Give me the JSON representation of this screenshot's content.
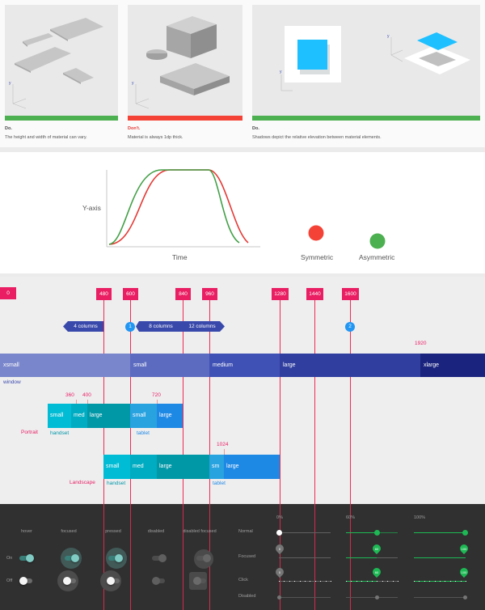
{
  "cards": [
    {
      "label": "Do.",
      "desc": "The height and width of material can vary.",
      "status_color": "#4caf50"
    },
    {
      "label": "Don't.",
      "desc": "Material is always 1dp thick.",
      "status_color": "#f44336"
    },
    {
      "label": "Do.",
      "desc": "Shadows depict the relative elevation between material elements.",
      "status_color": "#4caf50"
    }
  ],
  "axis_glyph": {
    "y": "y",
    "x": "x"
  },
  "easing": {
    "y_axis_label": "Y-axis",
    "x_axis_label": "Time",
    "legend": [
      {
        "label": "Symmetric",
        "color": "#f44336"
      },
      {
        "label": "Asymmetric",
        "color": "#4caf50"
      }
    ]
  },
  "breakpoints": {
    "values": [
      "0",
      "480",
      "600",
      "840",
      "960",
      "1280",
      "1440",
      "1600"
    ],
    "columns": {
      "four": "4 columns",
      "eight": "8 columns",
      "twelve": "12 columns"
    },
    "margins": {
      "first": "1",
      "second": "2"
    },
    "window_label": "window",
    "window_sizes": [
      "xsmall",
      "small",
      "medium",
      "large",
      "xlarge"
    ],
    "window_1920": "1920",
    "portrait": {
      "label": "Portrait",
      "marks": [
        "360",
        "400",
        "720"
      ],
      "handset": [
        "small",
        "med",
        "large"
      ],
      "tablet": [
        "small",
        "large"
      ],
      "handset_label": "handset",
      "tablet_label": "tablet"
    },
    "landscape": {
      "label": "Landscape",
      "mark": "1024",
      "handset": [
        "small",
        "med",
        "large"
      ],
      "tablet": [
        "sm",
        "large"
      ],
      "handset_label": "handset",
      "tablet_label": "tablet"
    }
  },
  "switches": {
    "states": [
      "hover",
      "focused",
      "pressed",
      "disabled",
      "disabled focused"
    ],
    "rows": [
      "On",
      "Off"
    ],
    "accent": "#4db6ac"
  },
  "sliders": {
    "columns": [
      "0%",
      "60%",
      "100%"
    ],
    "rows": [
      "Normal",
      "Focused",
      "Click",
      "Disabled"
    ],
    "pin_values": [
      "0",
      "60",
      "100"
    ],
    "accent": "#1db954"
  }
}
